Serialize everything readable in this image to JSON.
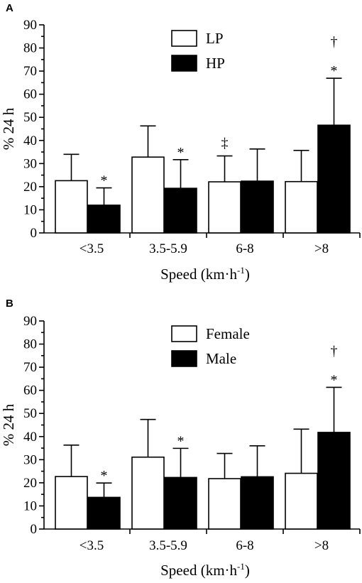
{
  "chart_data": [
    {
      "type": "bar",
      "panel": "A",
      "categories": [
        "<3.5",
        "3.5-5.9",
        "6-8",
        ">8"
      ],
      "xlabel": "Speed (km·h",
      "xlabel_sup": "-1",
      "xlabel_close": ")",
      "ylabel": "% 24 h",
      "ylim": [
        0,
        90
      ],
      "yticks": [
        0,
        10,
        20,
        30,
        40,
        50,
        60,
        70,
        80,
        90
      ],
      "legend_position": "top-center",
      "grid": false,
      "series": [
        {
          "name": "LP",
          "fill": "#ffffff",
          "values": [
            22.6,
            32.8,
            22.1,
            22.2
          ],
          "error": [
            11.4,
            13.5,
            11.2,
            13.5
          ]
        },
        {
          "name": "HP",
          "fill": "#000000",
          "values": [
            12.0,
            19.3,
            22.4,
            46.6
          ],
          "error": [
            7.5,
            12.4,
            13.9,
            20.3
          ]
        }
      ],
      "annotations": [
        {
          "series": 1,
          "category": 0,
          "text": "*"
        },
        {
          "series": 1,
          "category": 1,
          "text": "*"
        },
        {
          "series": 0,
          "category": 2,
          "text": "‡"
        },
        {
          "series": 1,
          "category": 3,
          "text": "*"
        },
        {
          "series": 1,
          "category": 3,
          "text": "†"
        }
      ]
    },
    {
      "type": "bar",
      "panel": "B",
      "categories": [
        "<3.5",
        "3.5-5.9",
        "6-8",
        ">8"
      ],
      "xlabel": "Speed (km·h",
      "xlabel_sup": "-1",
      "xlabel_close": ")",
      "ylabel": "% 24 h",
      "ylim": [
        0,
        90
      ],
      "yticks": [
        0,
        10,
        20,
        30,
        40,
        50,
        60,
        70,
        80,
        90
      ],
      "legend_position": "top-center",
      "grid": false,
      "series": [
        {
          "name": "Female",
          "fill": "#ffffff",
          "values": [
            22.7,
            31.1,
            21.8,
            24.1
          ],
          "error": [
            13.6,
            16.3,
            10.9,
            19.1
          ]
        },
        {
          "name": "Male",
          "fill": "#000000",
          "values": [
            13.7,
            22.3,
            22.6,
            41.8
          ],
          "error": [
            6.2,
            12.6,
            13.4,
            19.5
          ]
        }
      ],
      "annotations": [
        {
          "series": 1,
          "category": 0,
          "text": "*"
        },
        {
          "series": 1,
          "category": 1,
          "text": "*"
        },
        {
          "series": 1,
          "category": 3,
          "text": "*"
        },
        {
          "series": 1,
          "category": 3,
          "text": "†"
        }
      ]
    }
  ]
}
